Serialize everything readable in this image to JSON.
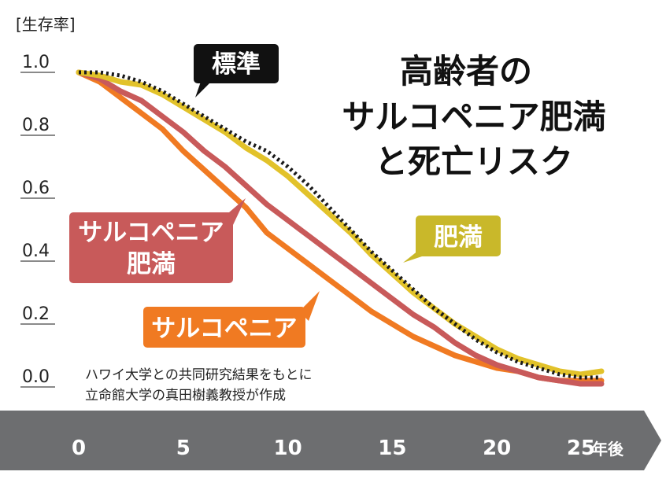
{
  "chart_data": {
    "type": "line",
    "title_lines": [
      "高齢者の",
      "サルコペニア肥満",
      "と死亡リスク"
    ],
    "ylabel": "[生存率]",
    "xunit": "年後",
    "ylim": [
      0.0,
      1.0
    ],
    "xlim": [
      0,
      25
    ],
    "yticks": [
      "1.0",
      "0.8",
      "0.6",
      "0.4",
      "0.2",
      "0.0"
    ],
    "xticks": [
      "0",
      "5",
      "10",
      "15",
      "20",
      "25"
    ],
    "source_lines": [
      "ハワイ大学との共同研究結果をもとに",
      "立命館大学の真田樹義教授が作成"
    ],
    "series": [
      {
        "name": "標準",
        "color": "#1a1a1a",
        "style": "dotted",
        "x": [
          0,
          1,
          2,
          3,
          4,
          5,
          6,
          7,
          8,
          9,
          10,
          11,
          12,
          13,
          14,
          15,
          16,
          17,
          18,
          19,
          20,
          21,
          22,
          23,
          24,
          25
        ],
        "y": [
          1.0,
          1.0,
          0.99,
          0.97,
          0.94,
          0.9,
          0.86,
          0.82,
          0.78,
          0.75,
          0.7,
          0.64,
          0.57,
          0.5,
          0.43,
          0.37,
          0.31,
          0.25,
          0.2,
          0.15,
          0.11,
          0.08,
          0.06,
          0.04,
          0.03,
          0.03
        ]
      },
      {
        "name": "肥満",
        "color": "#e2c22a",
        "style": "solid",
        "x": [
          0,
          1,
          2,
          3,
          4,
          5,
          6,
          7,
          8,
          9,
          10,
          11,
          12,
          13,
          14,
          15,
          16,
          17,
          18,
          19,
          20,
          21,
          22,
          23,
          24,
          25
        ],
        "y": [
          1.0,
          0.99,
          0.97,
          0.96,
          0.93,
          0.89,
          0.85,
          0.81,
          0.76,
          0.72,
          0.67,
          0.61,
          0.55,
          0.49,
          0.42,
          0.36,
          0.3,
          0.25,
          0.2,
          0.16,
          0.12,
          0.09,
          0.07,
          0.05,
          0.04,
          0.05
        ]
      },
      {
        "name": "サルコペニア肥満",
        "color": "#c85a5a",
        "style": "solid",
        "x": [
          0,
          1,
          2,
          3,
          4,
          5,
          6,
          7,
          8,
          9,
          10,
          11,
          12,
          13,
          14,
          15,
          16,
          17,
          18,
          19,
          20,
          21,
          22,
          23,
          24,
          25
        ],
        "y": [
          1.0,
          0.98,
          0.94,
          0.91,
          0.86,
          0.81,
          0.75,
          0.7,
          0.64,
          0.58,
          0.53,
          0.48,
          0.43,
          0.38,
          0.33,
          0.28,
          0.23,
          0.19,
          0.14,
          0.1,
          0.07,
          0.05,
          0.03,
          0.02,
          0.01,
          0.01
        ]
      },
      {
        "name": "サルコペニア",
        "color": "#f07a22",
        "style": "solid",
        "x": [
          0,
          1,
          2,
          3,
          4,
          5,
          6,
          7,
          8,
          9,
          10,
          11,
          12,
          13,
          14,
          15,
          16,
          17,
          18,
          19,
          20,
          21,
          22,
          23,
          24,
          25
        ],
        "y": [
          1.0,
          0.97,
          0.92,
          0.87,
          0.82,
          0.75,
          0.69,
          0.63,
          0.57,
          0.49,
          0.44,
          0.39,
          0.34,
          0.29,
          0.24,
          0.2,
          0.16,
          0.13,
          0.1,
          0.08,
          0.06,
          0.05,
          0.03,
          0.02,
          0.02,
          0.02
        ]
      }
    ],
    "callouts": [
      {
        "text": "標準",
        "fill": "#111111"
      },
      {
        "text": "肥満",
        "fill": "#c9b82a"
      },
      {
        "lines": [
          "サルコペニア",
          "肥満"
        ],
        "fill": "#c85a5a"
      },
      {
        "text": "サルコペニア",
        "fill": "#f07a22"
      }
    ]
  }
}
